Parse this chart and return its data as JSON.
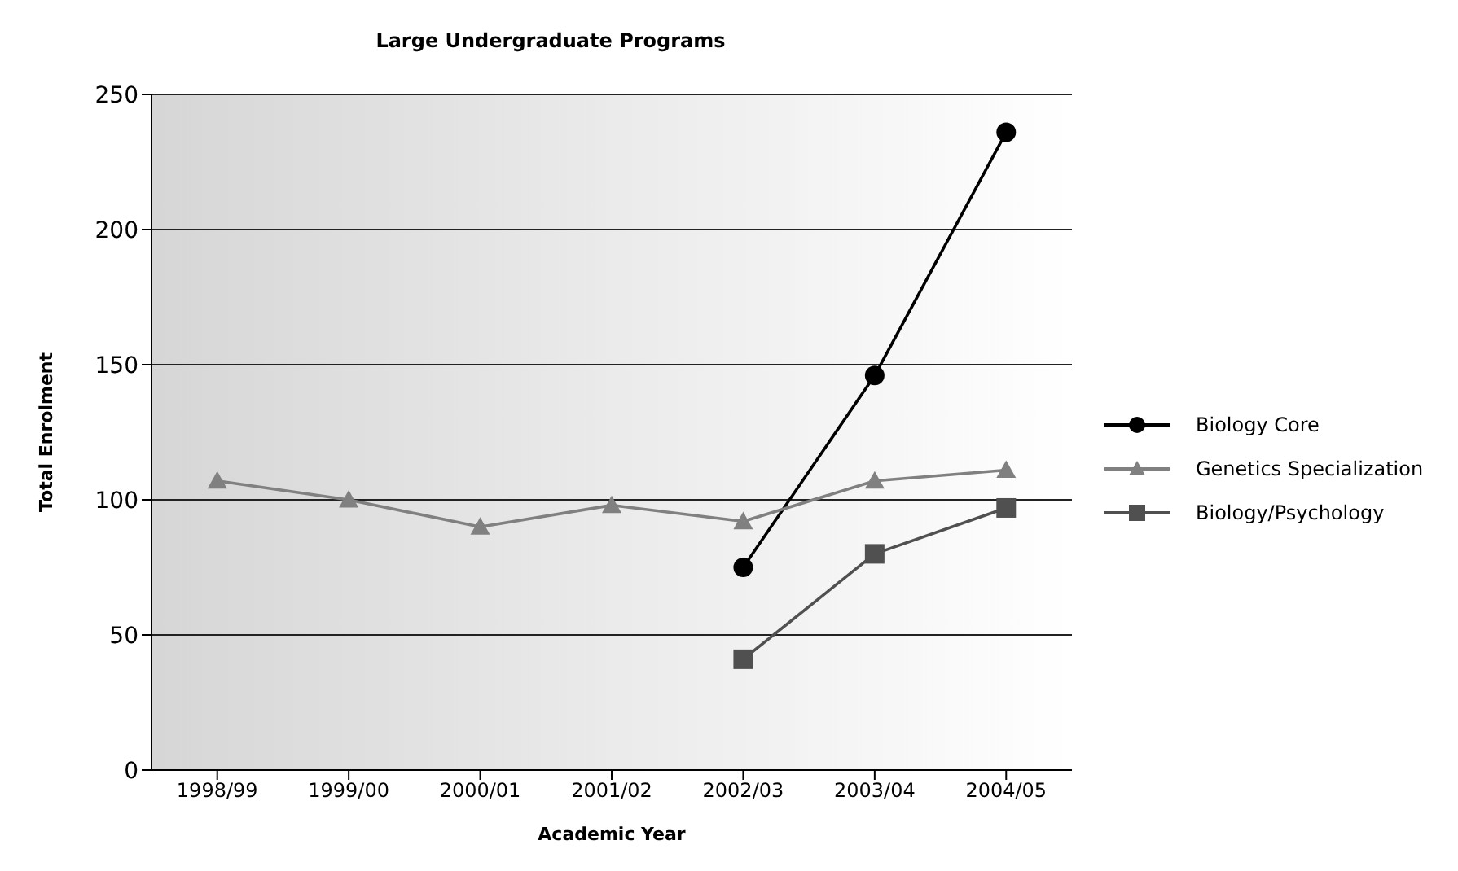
{
  "chart_data": {
    "type": "line",
    "title": "Large Undergraduate Programs",
    "xlabel": "Academic Year",
    "ylabel": "Total Enrolment",
    "categories": [
      "1998/99",
      "1999/00",
      "2000/01",
      "2001/02",
      "2002/03",
      "2003/04",
      "2004/05"
    ],
    "series": [
      {
        "name": "Biology Core",
        "color": "#000000",
        "marker": "circle",
        "values": [
          null,
          null,
          null,
          null,
          75,
          146,
          236
        ]
      },
      {
        "name": "Genetics Specialization",
        "color": "#808080",
        "marker": "triangle",
        "values": [
          107,
          100,
          90,
          98,
          92,
          107,
          111
        ]
      },
      {
        "name": "Biology/Psychology",
        "color": "#505050",
        "marker": "square",
        "values": [
          null,
          null,
          null,
          null,
          41,
          80,
          97
        ]
      }
    ],
    "ylim": [
      0,
      250
    ],
    "yticks": [
      0,
      50,
      100,
      150,
      200,
      250
    ],
    "grid": "y",
    "legend": "right"
  }
}
